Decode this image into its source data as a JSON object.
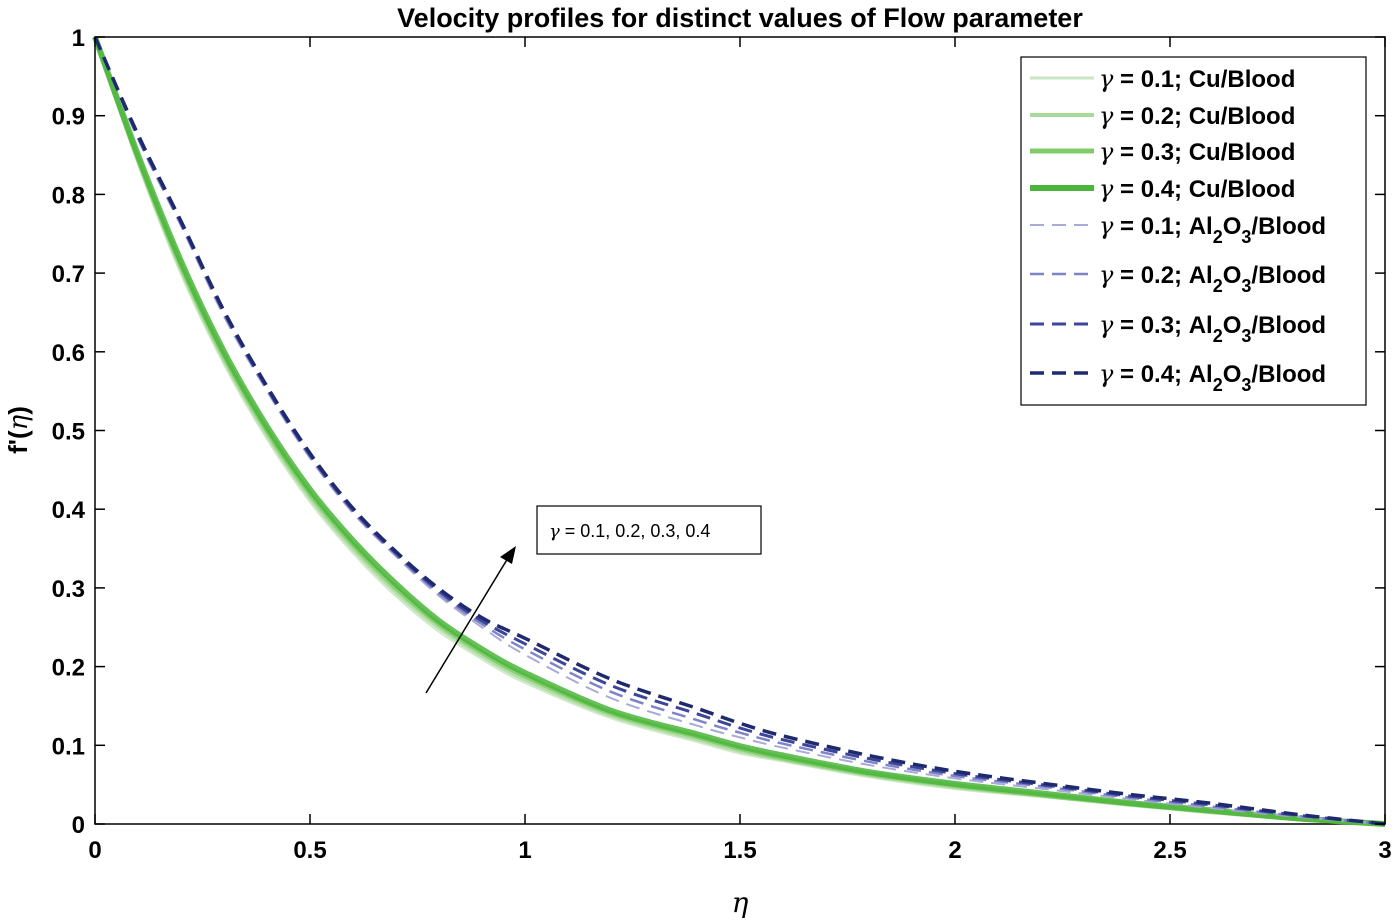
{
  "chart_data": {
    "type": "line",
    "title": "Velocity profiles for distinct values of Flow parameter",
    "xlabel": "η",
    "ylabel_prefix": "f'(",
    "ylabel_var": "η",
    "ylabel_suffix": ")",
    "xlim": [
      0,
      3
    ],
    "ylim": [
      0,
      1
    ],
    "xticks": [
      0,
      0.5,
      1,
      1.5,
      2,
      2.5,
      3
    ],
    "xtick_labels": [
      "0",
      "0.5",
      "1",
      "1.5",
      "2",
      "2.5",
      "3"
    ],
    "yticks": [
      0,
      0.1,
      0.2,
      0.3,
      0.4,
      0.5,
      0.6,
      0.7,
      0.8,
      0.9,
      1
    ],
    "ytick_labels": [
      "0",
      "0.1",
      "0.2",
      "0.3",
      "0.4",
      "0.5",
      "0.6",
      "0.7",
      "0.8",
      "0.9",
      "1"
    ],
    "grid": false,
    "legend_position": "top-right",
    "x": [
      0,
      0.1,
      0.2,
      0.3,
      0.4,
      0.5,
      0.6,
      0.7,
      0.8,
      0.9,
      1.0,
      1.2,
      1.4,
      1.5,
      1.6,
      1.8,
      2.0,
      2.2,
      2.4,
      2.5,
      2.6,
      2.8,
      3.0
    ],
    "series": [
      {
        "name": "γ = 0.1;  Cu/Blood",
        "gamma": "0.1",
        "fluid": "Cu/Blood",
        "style": "solid",
        "color": "#c8e6bf",
        "values": [
          1,
          0.84,
          0.7,
          0.585,
          0.49,
          0.41,
          0.345,
          0.29,
          0.245,
          0.21,
          0.18,
          0.135,
          0.105,
          0.09,
          0.08,
          0.06,
          0.045,
          0.035,
          0.024,
          0.019,
          0.014,
          0.006,
          0
        ]
      },
      {
        "name": "γ = 0.2;  Cu/Blood",
        "gamma": "0.2",
        "fluid": "Cu/Blood",
        "style": "solid",
        "color": "#a8d99a",
        "values": [
          1,
          0.843,
          0.705,
          0.59,
          0.495,
          0.415,
          0.35,
          0.295,
          0.25,
          0.214,
          0.184,
          0.138,
          0.108,
          0.093,
          0.082,
          0.062,
          0.047,
          0.036,
          0.025,
          0.02,
          0.015,
          0.006,
          0
        ]
      },
      {
        "name": "γ = 0.3;  Cu/Blood",
        "gamma": "0.3",
        "fluid": "Cu/Blood",
        "style": "solid",
        "color": "#7fcc68",
        "values": [
          1,
          0.846,
          0.71,
          0.595,
          0.5,
          0.42,
          0.355,
          0.3,
          0.254,
          0.218,
          0.188,
          0.141,
          0.111,
          0.096,
          0.084,
          0.064,
          0.049,
          0.037,
          0.026,
          0.021,
          0.016,
          0.007,
          0
        ]
      },
      {
        "name": "γ = 0.4;  Cu/Blood",
        "gamma": "0.4",
        "fluid": "Cu/Blood",
        "style": "solid",
        "color": "#4ab53a",
        "values": [
          1,
          0.85,
          0.715,
          0.6,
          0.505,
          0.425,
          0.36,
          0.305,
          0.258,
          0.222,
          0.192,
          0.144,
          0.114,
          0.099,
          0.087,
          0.066,
          0.051,
          0.039,
          0.027,
          0.022,
          0.017,
          0.007,
          0
        ]
      },
      {
        "name": "γ = 0.1; Al2O3/Blood",
        "gamma": "0.1",
        "fluid": "Al2O3/Blood",
        "style": "dashed",
        "color": "#a8aad8",
        "values": [
          1,
          0.87,
          0.76,
          0.645,
          0.55,
          0.465,
          0.395,
          0.34,
          0.29,
          0.25,
          0.215,
          0.16,
          0.125,
          0.11,
          0.097,
          0.075,
          0.058,
          0.045,
          0.032,
          0.026,
          0.02,
          0.009,
          0
        ]
      },
      {
        "name": "γ = 0.2; Al2O3/Blood",
        "gamma": "0.2",
        "fluid": "Al2O3/Blood",
        "style": "dashed",
        "color": "#7f84c6",
        "values": [
          1,
          0.872,
          0.762,
          0.648,
          0.552,
          0.467,
          0.397,
          0.342,
          0.293,
          0.254,
          0.222,
          0.168,
          0.132,
          0.116,
          0.102,
          0.079,
          0.061,
          0.048,
          0.034,
          0.028,
          0.022,
          0.01,
          0
        ]
      },
      {
        "name": "γ = 0.3; Al2O3/Blood",
        "gamma": "0.3",
        "fluid": "Al2O3/Blood",
        "style": "dashed",
        "color": "#3c4598",
        "values": [
          1,
          0.874,
          0.764,
          0.65,
          0.554,
          0.469,
          0.399,
          0.344,
          0.296,
          0.258,
          0.229,
          0.176,
          0.14,
          0.122,
          0.107,
          0.083,
          0.064,
          0.05,
          0.036,
          0.03,
          0.024,
          0.011,
          0
        ]
      },
      {
        "name": "γ = 0.4; Al2O3/Blood",
        "gamma": "0.4",
        "fluid": "Al2O3/Blood",
        "style": "dashed",
        "color": "#1f2a6e",
        "values": [
          1,
          0.876,
          0.766,
          0.652,
          0.556,
          0.471,
          0.401,
          0.346,
          0.299,
          0.262,
          0.236,
          0.184,
          0.147,
          0.128,
          0.112,
          0.087,
          0.067,
          0.052,
          0.038,
          0.032,
          0.026,
          0.012,
          0
        ]
      }
    ],
    "annotation": {
      "prefix": "γ",
      "text": " = 0.1, 0.2, 0.3, 0.4"
    }
  }
}
